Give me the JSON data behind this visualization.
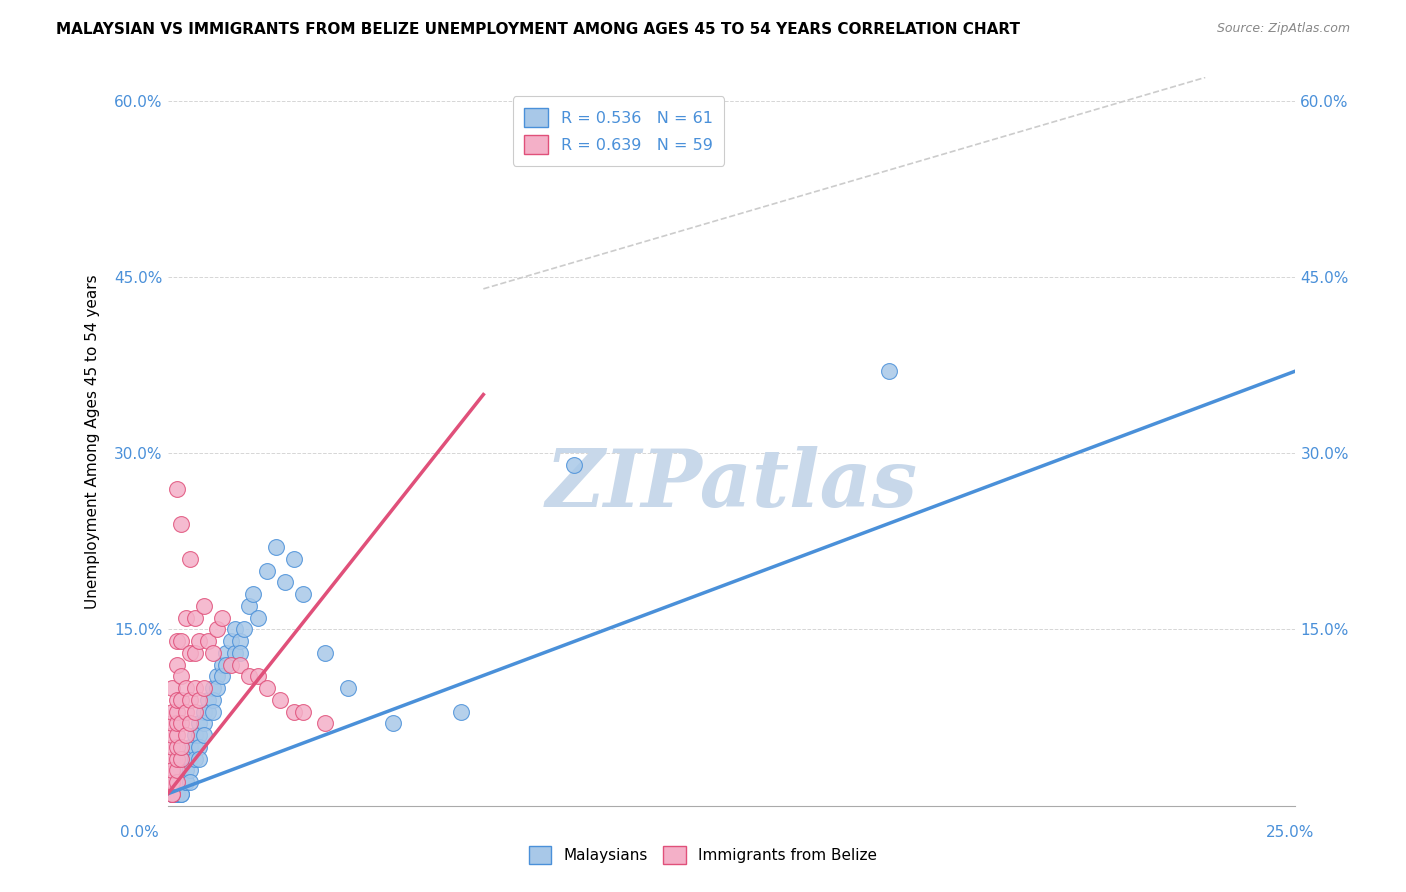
{
  "title": "MALAYSIAN VS IMMIGRANTS FROM BELIZE UNEMPLOYMENT AMONG AGES 45 TO 54 YEARS CORRELATION CHART",
  "source": "Source: ZipAtlas.com",
  "ylabel": "Unemployment Among Ages 45 to 54 years",
  "malaysian_color": "#a8c8e8",
  "belize_color": "#f4b0c8",
  "malaysian_line_color": "#4a90d9",
  "belize_line_color": "#e0507a",
  "diagonal_color": "#cccccc",
  "watermark": "ZIPatlas",
  "watermark_color": "#c8d8ea",
  "xlim": [
    0.0,
    0.25
  ],
  "ylim": [
    0.0,
    0.62
  ],
  "yticks": [
    0.0,
    0.15,
    0.3,
    0.45,
    0.6
  ],
  "ytick_labels": [
    "",
    "15.0%",
    "30.0%",
    "45.0%",
    "60.0%"
  ],
  "xtick_labels": [
    "0.0%",
    "",
    "",
    "",
    "",
    "25.0%"
  ],
  "malaysian_r": "0.536",
  "malaysian_n": "61",
  "belize_r": "0.639",
  "belize_n": "59",
  "mal_line_x": [
    0.0,
    0.25
  ],
  "mal_line_y": [
    0.01,
    0.37
  ],
  "bel_line_x": [
    0.0,
    0.07
  ],
  "bel_line_y": [
    0.01,
    0.35
  ],
  "diag_line_x": [
    0.09,
    0.25
  ],
  "diag_line_y": [
    0.5,
    0.6
  ],
  "malaysian_x": [
    0.001,
    0.001,
    0.001,
    0.002,
    0.002,
    0.002,
    0.002,
    0.003,
    0.003,
    0.003,
    0.003,
    0.003,
    0.004,
    0.004,
    0.004,
    0.004,
    0.005,
    0.005,
    0.005,
    0.005,
    0.006,
    0.006,
    0.006,
    0.007,
    0.007,
    0.007,
    0.007,
    0.008,
    0.008,
    0.008,
    0.009,
    0.009,
    0.01,
    0.01,
    0.01,
    0.011,
    0.011,
    0.012,
    0.012,
    0.013,
    0.013,
    0.014,
    0.015,
    0.015,
    0.016,
    0.016,
    0.017,
    0.018,
    0.019,
    0.02,
    0.022,
    0.024,
    0.026,
    0.028,
    0.03,
    0.035,
    0.04,
    0.05,
    0.065,
    0.09,
    0.16
  ],
  "malaysian_y": [
    0.01,
    0.02,
    0.01,
    0.02,
    0.01,
    0.02,
    0.01,
    0.02,
    0.01,
    0.03,
    0.02,
    0.01,
    0.03,
    0.02,
    0.04,
    0.02,
    0.04,
    0.03,
    0.05,
    0.02,
    0.05,
    0.06,
    0.04,
    0.07,
    0.06,
    0.05,
    0.04,
    0.08,
    0.07,
    0.06,
    0.09,
    0.08,
    0.1,
    0.09,
    0.08,
    0.11,
    0.1,
    0.12,
    0.11,
    0.13,
    0.12,
    0.14,
    0.13,
    0.15,
    0.14,
    0.13,
    0.15,
    0.17,
    0.18,
    0.16,
    0.2,
    0.22,
    0.19,
    0.21,
    0.18,
    0.13,
    0.1,
    0.07,
    0.08,
    0.29,
    0.37
  ],
  "belize_x": [
    0.001,
    0.001,
    0.001,
    0.001,
    0.001,
    0.001,
    0.001,
    0.001,
    0.001,
    0.001,
    0.001,
    0.001,
    0.002,
    0.002,
    0.002,
    0.002,
    0.002,
    0.002,
    0.002,
    0.002,
    0.002,
    0.002,
    0.002,
    0.003,
    0.003,
    0.003,
    0.003,
    0.003,
    0.003,
    0.003,
    0.004,
    0.004,
    0.004,
    0.004,
    0.005,
    0.005,
    0.005,
    0.005,
    0.006,
    0.006,
    0.006,
    0.006,
    0.007,
    0.007,
    0.008,
    0.008,
    0.009,
    0.01,
    0.011,
    0.012,
    0.014,
    0.016,
    0.018,
    0.02,
    0.022,
    0.025,
    0.028,
    0.03,
    0.035
  ],
  "belize_y": [
    0.01,
    0.02,
    0.01,
    0.03,
    0.02,
    0.04,
    0.03,
    0.05,
    0.06,
    0.07,
    0.08,
    0.1,
    0.02,
    0.03,
    0.04,
    0.05,
    0.06,
    0.07,
    0.08,
    0.09,
    0.12,
    0.14,
    0.27,
    0.04,
    0.05,
    0.07,
    0.09,
    0.11,
    0.14,
    0.24,
    0.06,
    0.08,
    0.1,
    0.16,
    0.07,
    0.09,
    0.13,
    0.21,
    0.08,
    0.1,
    0.13,
    0.16,
    0.09,
    0.14,
    0.1,
    0.17,
    0.14,
    0.13,
    0.15,
    0.16,
    0.12,
    0.12,
    0.11,
    0.11,
    0.1,
    0.09,
    0.08,
    0.08,
    0.07
  ]
}
